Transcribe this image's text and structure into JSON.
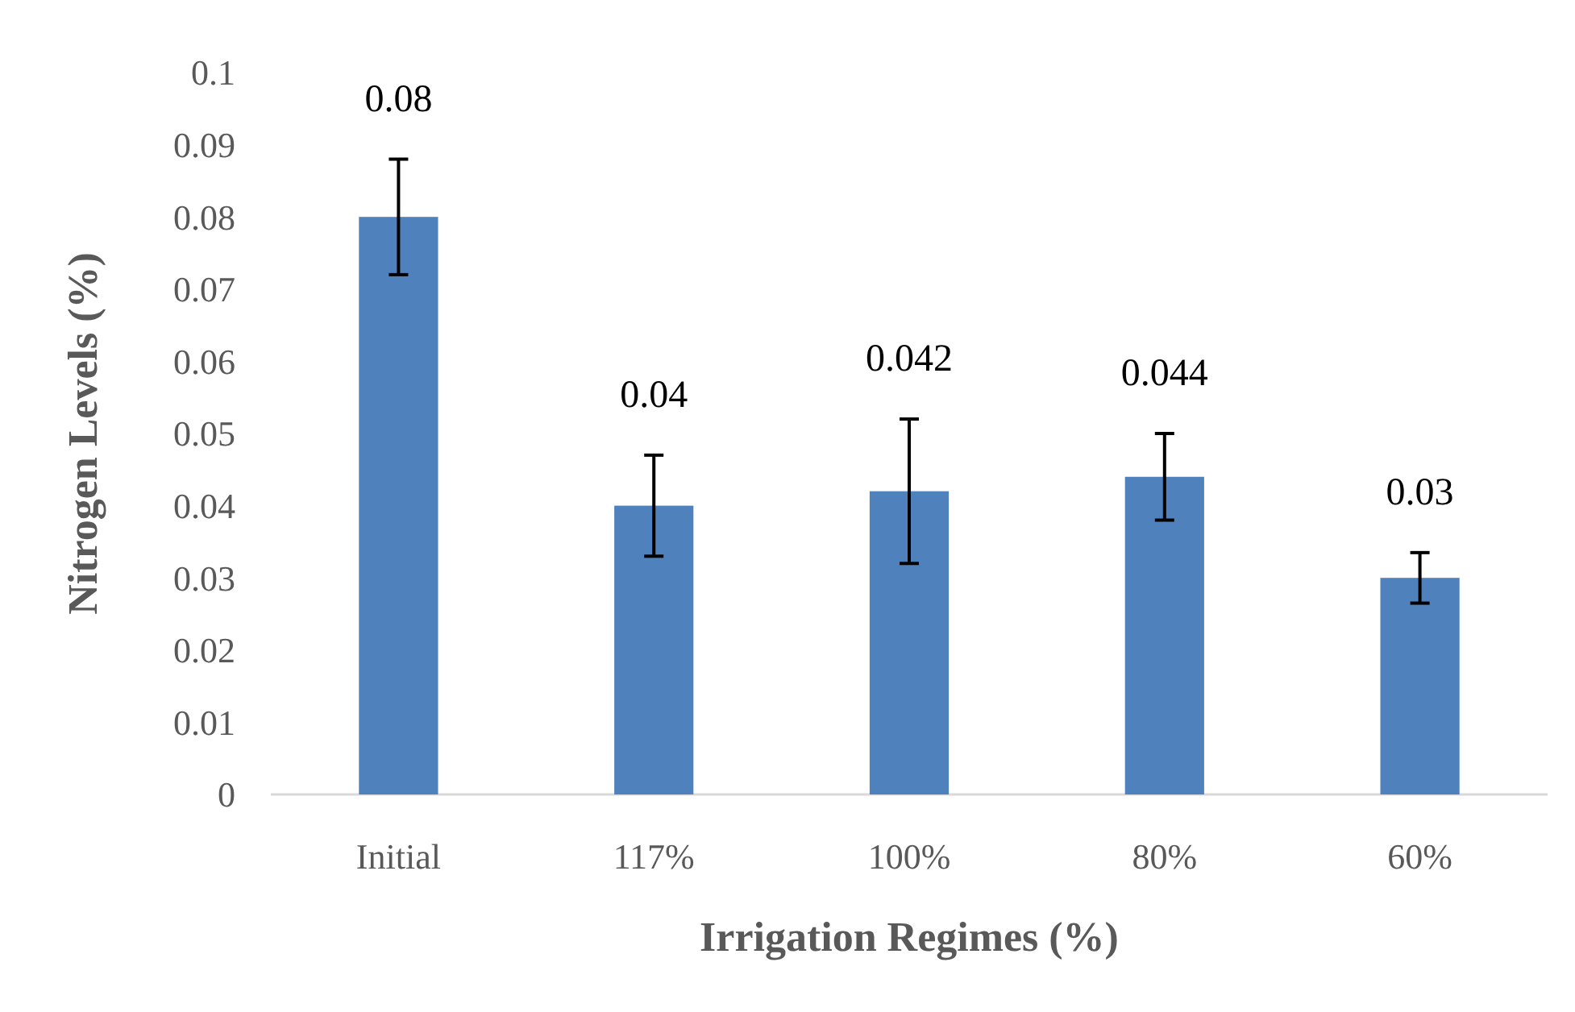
{
  "chart_data": {
    "type": "bar",
    "xlabel": "Irrigation Regimes (%)",
    "ylabel": "Nitrogen Levels (%)",
    "categories": [
      "Initial",
      "117%",
      "100%",
      "80%",
      "60%"
    ],
    "values": [
      0.08,
      0.04,
      0.042,
      0.044,
      0.03
    ],
    "errors": [
      0.008,
      0.007,
      0.01,
      0.006,
      0.0035
    ],
    "color": "#4f81bd",
    "data_labels": true,
    "grid": false,
    "ylim": [
      0,
      0.1
    ],
    "yticks": [
      0,
      0.01,
      0.02,
      0.03,
      0.04,
      0.05,
      0.06,
      0.07,
      0.08,
      0.09,
      0.1
    ]
  }
}
